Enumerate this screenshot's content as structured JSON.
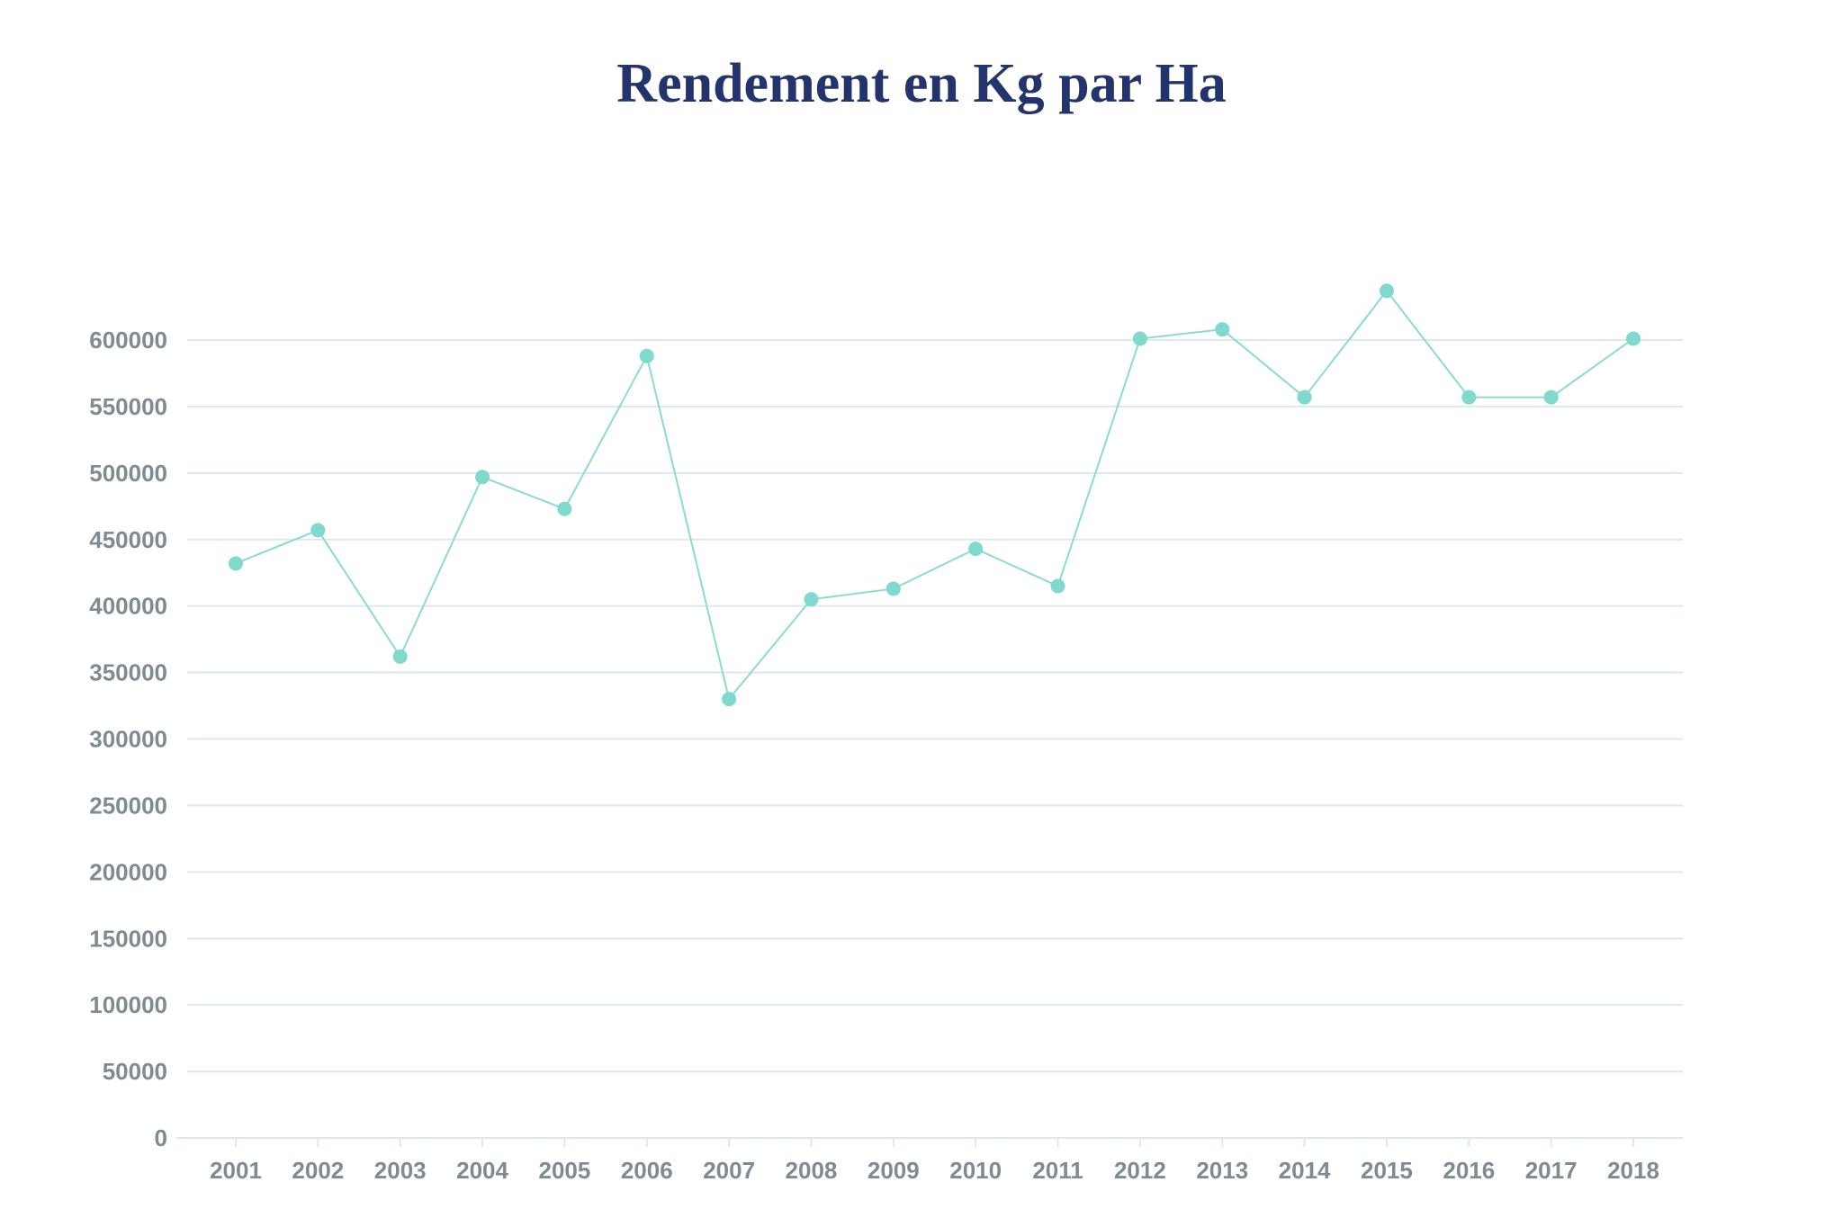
{
  "chart_data": {
    "type": "line",
    "title": "Rendement en Kg par Ha",
    "xlabel": "",
    "ylabel": "",
    "categories": [
      "2001",
      "2002",
      "2003",
      "2004",
      "2005",
      "2006",
      "2007",
      "2008",
      "2009",
      "2010",
      "2011",
      "2012",
      "2013",
      "2014",
      "2015",
      "2016",
      "2017",
      "2018"
    ],
    "series": [
      {
        "values": [
          432000,
          457000,
          362000,
          497000,
          473000,
          588000,
          330000,
          405000,
          413000,
          443000,
          415000,
          601000,
          608000,
          557000,
          637000,
          557000,
          557000,
          601000
        ]
      }
    ],
    "ylim": [
      0,
      600000
    ],
    "yticks": [
      0,
      50000,
      100000,
      150000,
      200000,
      250000,
      300000,
      350000,
      400000,
      450000,
      500000,
      550000,
      600000
    ],
    "ytick_labels": [
      "0",
      "50000",
      "100000",
      "150000",
      "200000",
      "250000",
      "300000",
      "350000",
      "400000",
      "450000",
      "500000",
      "550000",
      "600000"
    ],
    "grid": true,
    "legend": "none",
    "colors": {
      "line": "#8bdcd0",
      "marker": "#7fd9cd",
      "grid": "#dde8ef",
      "tick_text": "#808a92",
      "title": "#22346b"
    }
  }
}
